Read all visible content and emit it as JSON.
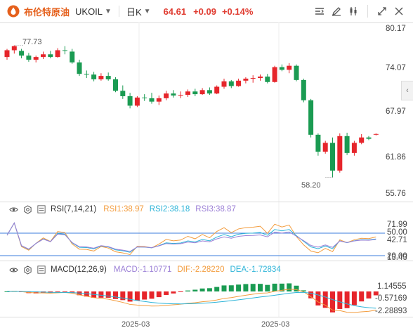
{
  "header": {
    "title": "布伦特原油",
    "symbol": "UKOIL",
    "period": "日K",
    "price": "64.61",
    "change": "+0.09",
    "change_pct": "+0.14%"
  },
  "tools": [
    "line-style-icon",
    "pencil-icon",
    "candle-type-icon",
    "expand-icon",
    "close-icon"
  ],
  "colors": {
    "up": "#e6252b",
    "down": "#1a9b52",
    "accent": "#e5601c"
  },
  "chart_data": [
    {
      "type": "candlestick",
      "title": "UKOIL 日K",
      "y_axis": [
        "80.17",
        "74.07",
        "67.97",
        "61.86",
        "55.76"
      ],
      "ylim": [
        55.76,
        80.17
      ],
      "max_label": "77.73",
      "min_label": "58.20",
      "x_ticks": [
        "2025-03",
        "2025-03"
      ],
      "candles": [
        [
          76.0,
          77.2,
          75.6,
          77.0
        ],
        [
          77.0,
          77.73,
          76.5,
          77.6
        ],
        [
          76.9,
          77.2,
          75.8,
          76.2
        ],
        [
          76.2,
          76.6,
          75.3,
          75.6
        ],
        [
          75.6,
          76.2,
          75.2,
          76.0
        ],
        [
          76.0,
          76.8,
          75.7,
          76.4
        ],
        [
          76.4,
          76.9,
          75.8,
          76.0
        ],
        [
          76.0,
          77.3,
          75.9,
          77.0
        ],
        [
          77.0,
          77.6,
          76.4,
          76.9
        ],
        [
          76.8,
          77.2,
          75.0,
          75.2
        ],
        [
          75.2,
          75.6,
          73.2,
          73.5
        ],
        [
          73.5,
          74.0,
          72.9,
          73.4
        ],
        [
          73.4,
          73.8,
          72.4,
          72.7
        ],
        [
          72.7,
          73.6,
          72.5,
          73.2
        ],
        [
          73.2,
          73.7,
          72.5,
          72.7
        ],
        [
          72.7,
          73.0,
          70.8,
          71.0
        ],
        [
          71.0,
          71.8,
          69.8,
          70.2
        ],
        [
          70.2,
          70.7,
          68.4,
          68.8
        ],
        [
          68.8,
          70.2,
          68.6,
          70.0
        ],
        [
          70.0,
          70.5,
          69.5,
          69.9
        ],
        [
          69.9,
          70.7,
          69.1,
          69.4
        ],
        [
          69.4,
          70.3,
          68.9,
          69.9
        ],
        [
          69.9,
          71.0,
          69.6,
          70.6
        ],
        [
          70.6,
          71.1,
          70.0,
          70.3
        ],
        [
          70.3,
          70.9,
          69.9,
          70.4
        ],
        [
          70.4,
          71.2,
          70.1,
          70.9
        ],
        [
          70.9,
          71.3,
          70.2,
          70.5
        ],
        [
          70.5,
          71.4,
          70.4,
          71.1
        ],
        [
          71.1,
          71.5,
          70.4,
          70.6
        ],
        [
          70.6,
          71.8,
          70.5,
          71.6
        ],
        [
          71.6,
          72.8,
          71.3,
          72.4
        ],
        [
          72.4,
          72.6,
          71.4,
          71.7
        ],
        [
          71.7,
          72.8,
          71.6,
          72.5
        ],
        [
          72.5,
          73.0,
          72.1,
          72.8
        ],
        [
          72.8,
          73.3,
          72.2,
          72.9
        ],
        [
          72.9,
          73.4,
          72.5,
          73.1
        ],
        [
          73.1,
          73.5,
          72.1,
          72.3
        ],
        [
          72.3,
          74.7,
          72.2,
          74.5
        ],
        [
          74.5,
          74.9,
          73.9,
          74.1
        ],
        [
          74.1,
          75.1,
          73.6,
          74.7
        ],
        [
          74.7,
          74.9,
          72.4,
          72.6
        ],
        [
          72.6,
          72.8,
          69.3,
          69.6
        ],
        [
          69.6,
          69.8,
          64.1,
          64.5
        ],
        [
          64.5,
          64.7,
          61.4,
          62.0
        ],
        [
          62.0,
          63.6,
          61.7,
          63.3
        ],
        [
          63.3,
          64.1,
          58.2,
          59.2
        ],
        [
          59.2,
          64.7,
          58.9,
          64.3
        ],
        [
          64.3,
          64.8,
          61.5,
          61.8
        ],
        [
          61.8,
          63.6,
          61.4,
          63.3
        ],
        [
          63.3,
          64.6,
          63.1,
          64.1
        ],
        [
          64.1,
          64.3,
          63.7,
          63.9
        ],
        [
          64.52,
          64.7,
          64.4,
          64.61
        ]
      ]
    },
    {
      "type": "line",
      "title": "RSI(7,14,21)",
      "y_axis": [
        "71.99",
        "50.00",
        "42.71",
        "20.00",
        "13.43"
      ],
      "series": [
        {
          "name": "RSI1",
          "label": "RSI1:38.97",
          "color": "#f39c3d"
        },
        {
          "name": "RSI2",
          "label": "RSI2:38.18",
          "color": "#2db4d8"
        },
        {
          "name": "RSI3",
          "label": "RSI3:38.87",
          "color": "#9b7fd6"
        }
      ]
    },
    {
      "type": "bar",
      "title": "MACD(12,26,9)",
      "y_axis": [
        "1.14555",
        "-0.57169",
        "-2.28893"
      ],
      "series": [
        {
          "name": "MACD",
          "label": "MACD:-1.10771",
          "color": "#9b7fd6"
        },
        {
          "name": "DIF",
          "label": "DIF:-2.28220",
          "color": "#f39c3d"
        },
        {
          "name": "DEA",
          "label": "DEA:-1.72834",
          "color": "#2db4d8"
        }
      ]
    }
  ],
  "rsi": {
    "name": "RSI(7,14,21)",
    "rsi1": "RSI1:38.97",
    "rsi2": "RSI2:38.18",
    "rsi3": "RSI3:38.87",
    "axis": [
      "71.99",
      "50.00",
      "42.71",
      "20.00",
      "13.43"
    ]
  },
  "macd": {
    "name": "MACD(12,26,9)",
    "macd": "MACD:-1.10771",
    "dif": "DIF:-2.28220",
    "dea": "DEA:-1.72834",
    "axis": [
      "1.14555",
      "-0.57169",
      "-2.28893"
    ]
  },
  "dates": [
    "2025-03",
    "2025-03"
  ]
}
